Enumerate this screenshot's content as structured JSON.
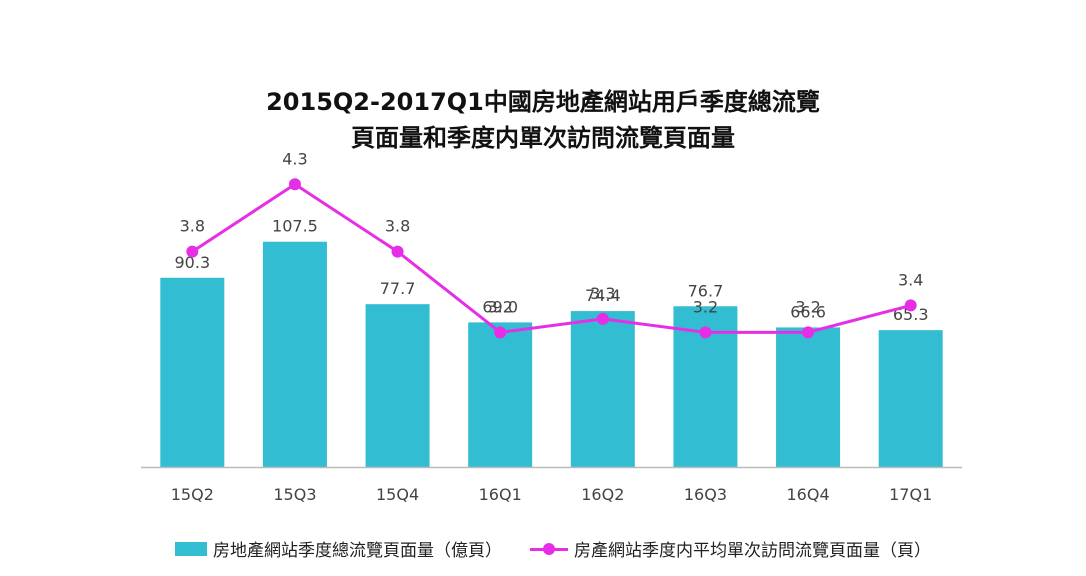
{
  "title_line1": "2015Q2-2017Q1中國房地產網站用戶季度總流覽",
  "title_line2": "頁面量和季度内單次訪問流覽頁面量",
  "colors": {
    "bar": "#33bdd2",
    "line": "#e62ee6",
    "axis": "#bbbbbb",
    "label": "#444444"
  },
  "chart_data": {
    "type": "bar",
    "categories": [
      "15Q2",
      "15Q3",
      "15Q4",
      "16Q1",
      "16Q2",
      "16Q3",
      "16Q4",
      "17Q1"
    ],
    "series": [
      {
        "name": "房地產網站季度總流覽頁面量（億頁）",
        "type": "bar",
        "values": [
          90.3,
          107.5,
          77.7,
          69.0,
          74.4,
          76.7,
          66.6,
          65.3
        ],
        "labels": [
          "90.3",
          "107.5",
          "77.7",
          "69.0",
          "74.4",
          "76.7",
          "66.6",
          "65.3"
        ]
      },
      {
        "name": "房產網站季度内平均單次訪問流覽頁面量（頁）",
        "type": "line",
        "values": [
          3.8,
          4.3,
          3.8,
          3.2,
          3.3,
          3.2,
          3.2,
          3.4
        ],
        "labels": [
          "3.8",
          "4.3",
          "3.8",
          "3.2",
          "3.3",
          "3.2",
          "3.2",
          "3.4"
        ]
      }
    ],
    "title": "2015Q2-2017Q1中國房地產網站用戶季度總流覽頁面量和季度内單次訪問流覽頁面量",
    "xlabel": "",
    "ylabel": "",
    "ylim": [
      0,
      115
    ],
    "y2lim": [
      2.2,
      5
    ],
    "grid": false,
    "legend": "bottom"
  }
}
